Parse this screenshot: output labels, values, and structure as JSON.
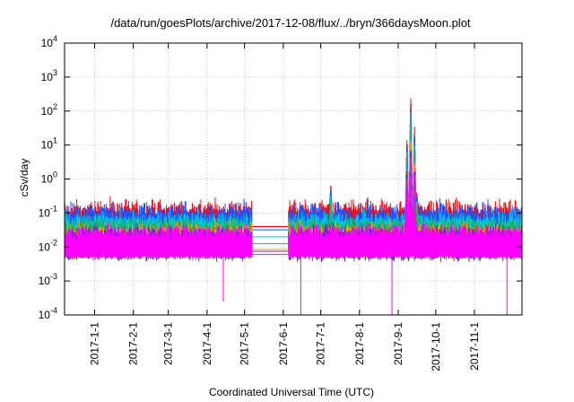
{
  "chart_data": {
    "type": "line",
    "title": "/data/run/goesPlots/archive/2017-12-08/flux/../bryn/366daysMoon.plot",
    "xlabel": "Coordinated Universal Time (UTC)",
    "ylabel": "cSv/day",
    "x_unit": "day of year 2017 (Dec 8 2016 = -24)",
    "xlim": [
      -24,
      342
    ],
    "ylim_log10": [
      -4,
      4
    ],
    "y_ticks": [
      {
        "base": "10",
        "exp": "-4"
      },
      {
        "base": "10",
        "exp": "-3"
      },
      {
        "base": "10",
        "exp": "-2"
      },
      {
        "base": "10",
        "exp": "-1"
      },
      {
        "base": "10",
        "exp": "0"
      },
      {
        "base": "10",
        "exp": "1"
      },
      {
        "base": "10",
        "exp": "2"
      },
      {
        "base": "10",
        "exp": "3"
      },
      {
        "base": "10",
        "exp": "4"
      }
    ],
    "x_ticks": [
      {
        "label": "2017-1-1",
        "day": 0
      },
      {
        "label": "2017-2-1",
        "day": 31
      },
      {
        "label": "2017-3-1",
        "day": 59
      },
      {
        "label": "2017-4-1",
        "day": 90
      },
      {
        "label": "2017-5-1",
        "day": 120
      },
      {
        "label": "2017-6-1",
        "day": 151
      },
      {
        "label": "2017-7-1",
        "day": 181
      },
      {
        "label": "2017-8-1",
        "day": 212
      },
      {
        "label": "2017-9-1",
        "day": 243
      },
      {
        "label": "2017-10-1",
        "day": 273
      },
      {
        "label": "2017-11-1",
        "day": 304
      }
    ],
    "grid": true,
    "data_gap": {
      "start_day": 126,
      "end_day": 155
    },
    "series": [
      {
        "name": "series-red",
        "color": "#ff0000",
        "base": 0.038,
        "spread": 0.55,
        "gap_level": 0.04,
        "points": [
          [
            189,
            0.6
          ],
          [
            250,
            14
          ],
          [
            253,
            220
          ],
          [
            256,
            30
          ],
          [
            258,
            0.4
          ]
        ]
      },
      {
        "name": "series-blue",
        "color": "#1a56ff",
        "base": 0.032,
        "spread": 0.55,
        "gap_level": 0.032,
        "points": [
          [
            189,
            0.5
          ],
          [
            250,
            10
          ],
          [
            253,
            150
          ],
          [
            256,
            20
          ],
          [
            258,
            0.3
          ]
        ]
      },
      {
        "name": "series-cyan",
        "color": "#00c8d8",
        "base": 0.024,
        "spread": 0.45,
        "gap_level": 0.02,
        "points": [
          [
            189,
            0.3
          ],
          [
            250,
            6
          ],
          [
            253,
            80
          ],
          [
            256,
            10
          ],
          [
            258,
            0.2
          ]
        ]
      },
      {
        "name": "series-green",
        "color": "#20b060",
        "base": 0.019,
        "spread": 0.4,
        "gap_level": 0.0125,
        "points": [
          [
            189,
            0.2
          ],
          [
            250,
            4
          ],
          [
            253,
            40
          ],
          [
            256,
            6
          ],
          [
            258,
            0.15
          ]
        ]
      },
      {
        "name": "series-orange",
        "color": "#ffa000",
        "base": 0.015,
        "spread": 0.35,
        "gap_level": 0.0085,
        "points": [
          [
            250,
            2
          ],
          [
            253,
            15
          ],
          [
            256,
            3
          ]
        ]
      },
      {
        "name": "series-purple",
        "color": "#7020d0",
        "base": 0.013,
        "spread": 0.35,
        "gap_level": 0.0075,
        "points": [
          [
            250,
            1.5
          ],
          [
            253,
            8
          ],
          [
            256,
            2
          ]
        ]
      },
      {
        "name": "series-magenta",
        "color": "#ff00ff",
        "base": 0.011,
        "spread": 0.4,
        "gap_level": 0.006,
        "floor": 0.005,
        "points": [
          [
            250,
            1
          ],
          [
            253,
            5
          ],
          [
            256,
            1.5
          ]
        ],
        "dips": [
          [
            103,
            0.00025
          ],
          [
            165,
            0.0001
          ],
          [
            238,
            0.0001
          ],
          [
            330,
            0.0001
          ]
        ]
      }
    ]
  }
}
